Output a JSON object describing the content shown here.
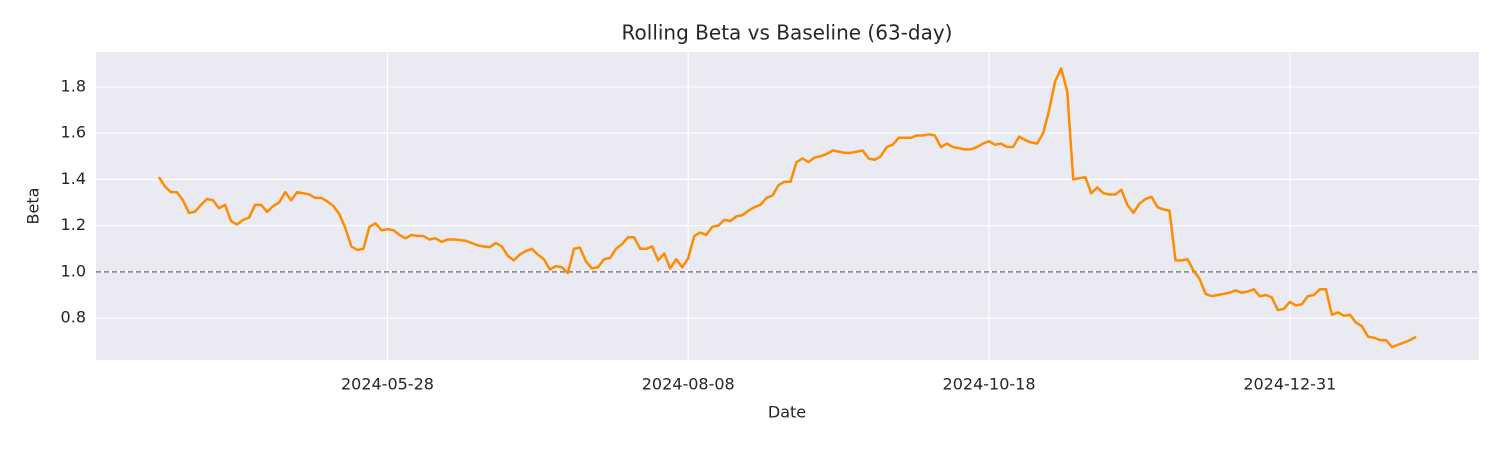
{
  "chart_data": {
    "type": "line",
    "title": "Rolling Beta vs Baseline (63-day)",
    "x_label": "Date",
    "y_label": "Beta",
    "categories": [
      null,
      null,
      null,
      null,
      null,
      null,
      null,
      null,
      null,
      null,
      null,
      null,
      null,
      null,
      null,
      null,
      null,
      null,
      null,
      null,
      null,
      null,
      null,
      null,
      null,
      null,
      null,
      null,
      null,
      null,
      null,
      null,
      null,
      null,
      null,
      null,
      null,
      null,
      "2024-05-28",
      null,
      null,
      null,
      null,
      null,
      null,
      null,
      null,
      null,
      null,
      null,
      null,
      null,
      null,
      null,
      null,
      null,
      null,
      null,
      null,
      null,
      null,
      null,
      null,
      null,
      null,
      null,
      null,
      null,
      null,
      null,
      null,
      null,
      null,
      null,
      null,
      null,
      null,
      null,
      null,
      null,
      null,
      null,
      null,
      null,
      null,
      null,
      null,
      null,
      "2024-08-08",
      null,
      null,
      null,
      null,
      null,
      null,
      null,
      null,
      null,
      null,
      null,
      null,
      null,
      null,
      null,
      null,
      null,
      null,
      null,
      null,
      null,
      null,
      null,
      null,
      null,
      null,
      null,
      null,
      null,
      null,
      null,
      null,
      null,
      null,
      null,
      null,
      null,
      null,
      null,
      null,
      null,
      null,
      null,
      null,
      null,
      null,
      null,
      null,
      null,
      "2024-10-18",
      null,
      null,
      null,
      null,
      null,
      null,
      null,
      null,
      null,
      null,
      null,
      null,
      null,
      null,
      null,
      null,
      null,
      null,
      null,
      null,
      null,
      null,
      null,
      null,
      null,
      null,
      null,
      null,
      null,
      null,
      null,
      null,
      null,
      null,
      null,
      null,
      null,
      null,
      null,
      null,
      null,
      null,
      null,
      null,
      null,
      null,
      null,
      null,
      null,
      "2024-12-31",
      null,
      null,
      null,
      null,
      null,
      null,
      null,
      null,
      null,
      null,
      null,
      null,
      null,
      null,
      null,
      null,
      null,
      null,
      null,
      null,
      null
    ],
    "values": [
      1.41,
      1.37,
      1.345,
      1.345,
      1.31,
      1.255,
      1.26,
      1.29,
      1.315,
      1.31,
      1.275,
      1.29,
      1.22,
      1.205,
      1.225,
      1.235,
      1.29,
      1.29,
      1.26,
      1.285,
      1.3,
      1.345,
      1.31,
      1.345,
      1.34,
      1.335,
      1.32,
      1.32,
      1.305,
      1.285,
      1.25,
      1.19,
      1.11,
      1.095,
      1.1,
      1.195,
      1.21,
      1.18,
      1.185,
      1.18,
      1.16,
      1.145,
      1.16,
      1.155,
      1.155,
      1.14,
      1.145,
      1.13,
      1.14,
      1.14,
      1.138,
      1.135,
      1.125,
      1.115,
      1.11,
      1.107,
      1.125,
      1.11,
      1.07,
      1.05,
      1.075,
      1.09,
      1.1,
      1.075,
      1.055,
      1.01,
      1.025,
      1.02,
      0.995,
      1.1,
      1.105,
      1.045,
      1.015,
      1.02,
      1.055,
      1.06,
      1.1,
      1.12,
      1.15,
      1.15,
      1.1,
      1.1,
      1.11,
      1.05,
      1.08,
      1.015,
      1.055,
      1.02,
      1.06,
      1.155,
      1.17,
      1.16,
      1.195,
      1.2,
      1.225,
      1.22,
      1.24,
      1.245,
      1.265,
      1.28,
      1.29,
      1.32,
      1.33,
      1.375,
      1.39,
      1.39,
      1.475,
      1.49,
      1.475,
      1.495,
      1.5,
      1.51,
      1.525,
      1.52,
      1.515,
      1.515,
      1.52,
      1.525,
      1.49,
      1.485,
      1.5,
      1.54,
      1.55,
      1.58,
      1.58,
      1.58,
      1.59,
      1.59,
      1.595,
      1.59,
      1.54,
      1.555,
      1.54,
      1.535,
      1.53,
      1.53,
      1.54,
      1.555,
      1.565,
      1.55,
      1.555,
      1.54,
      1.54,
      1.585,
      1.57,
      1.56,
      1.555,
      1.6,
      1.7,
      1.825,
      1.88,
      1.78,
      1.4,
      1.405,
      1.41,
      1.34,
      1.365,
      1.34,
      1.335,
      1.335,
      1.355,
      1.29,
      1.255,
      1.295,
      1.315,
      1.325,
      1.28,
      1.27,
      1.265,
      1.05,
      1.05,
      1.055,
      1.005,
      0.97,
      0.905,
      0.895,
      0.9,
      0.905,
      0.91,
      0.92,
      0.91,
      0.915,
      0.925,
      0.895,
      0.9,
      0.89,
      0.835,
      0.84,
      0.87,
      0.855,
      0.86,
      0.895,
      0.9,
      0.925,
      0.925,
      0.815,
      0.825,
      0.81,
      0.815,
      0.78,
      0.765,
      0.72,
      0.715,
      0.705,
      0.705,
      0.675,
      0.685,
      0.695,
      0.705,
      0.72
    ],
    "color": "#ff8c00",
    "baseline": 1,
    "baseline_color": "#808080",
    "ylim": [
      0.619,
      1.951
    ],
    "yticks": [
      0.8,
      {
        "value": 1,
        "label": "1.0"
      },
      1.2,
      1.4,
      1.6,
      1.8
    ],
    "grid": true
  }
}
